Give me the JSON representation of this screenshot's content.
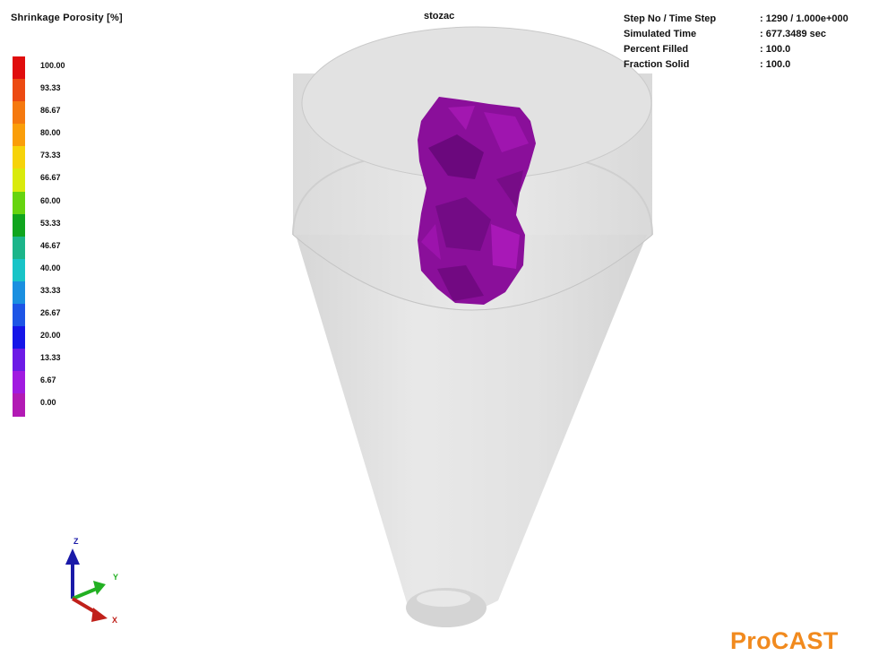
{
  "legend": {
    "title": "Shrinkage Porosity [%]",
    "entries": [
      {
        "label": "100.00",
        "color": "#e00d0d"
      },
      {
        "label": "93.33",
        "color": "#ec4a12"
      },
      {
        "label": "86.67",
        "color": "#f5790f"
      },
      {
        "label": "80.00",
        "color": "#fa9e0a"
      },
      {
        "label": "73.33",
        "color": "#f6d30a"
      },
      {
        "label": "66.67",
        "color": "#d9ea0c"
      },
      {
        "label": "60.00",
        "color": "#66d40f"
      },
      {
        "label": "53.33",
        "color": "#10a51e"
      },
      {
        "label": "46.67",
        "color": "#1cb58a"
      },
      {
        "label": "40.00",
        "color": "#18c4c7"
      },
      {
        "label": "33.33",
        "color": "#1a8fe0"
      },
      {
        "label": "26.67",
        "color": "#1d55e6"
      },
      {
        "label": "20.00",
        "color": "#1515e8"
      },
      {
        "label": "13.33",
        "color": "#6c1ae6"
      },
      {
        "label": "6.67",
        "color": "#a11ae0"
      },
      {
        "label": "0.00",
        "color": "#b21ab4"
      }
    ]
  },
  "simulation_title": "stozac",
  "info": [
    {
      "label": "Step No / Time Step",
      "value": ": 1290 / 1.000e+000"
    },
    {
      "label": "Simulated Time",
      "value": ": 677.3489 sec"
    },
    {
      "label": "Percent Filled",
      "value": ": 100.0"
    },
    {
      "label": "Fraction Solid",
      "value": ": 100.0"
    }
  ],
  "triad": {
    "x": "X",
    "y": "Y",
    "z": "Z"
  },
  "brand": "ProCAST",
  "colors": {
    "porosity_blob": "#8a0f9a",
    "porosity_blob_dark": "#5e0670",
    "porosity_blob_light": "#b21cc0",
    "casting": "#dcdcdc",
    "axis_x": "#c0201a",
    "axis_y": "#22b022",
    "axis_z": "#1a1aa8",
    "brand": "#f18a1e"
  }
}
